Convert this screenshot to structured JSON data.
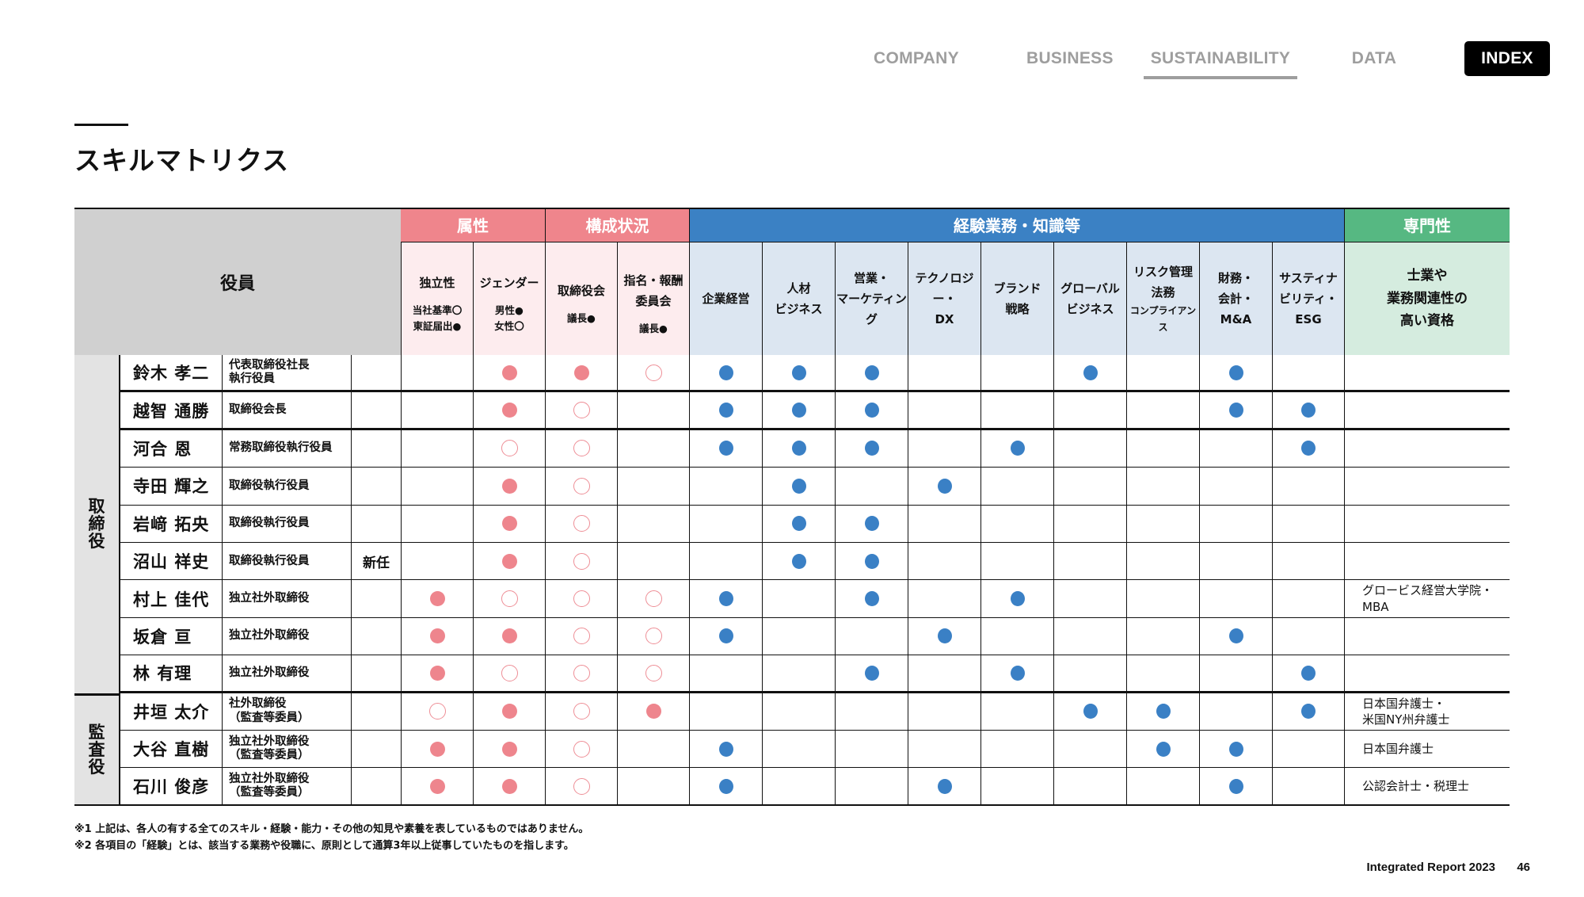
{
  "nav": {
    "items": [
      {
        "label": "COMPANY",
        "active": false
      },
      {
        "label": "BUSINESS",
        "active": false
      },
      {
        "label": "SUSTAINABILITY",
        "active": true
      },
      {
        "label": "DATA",
        "active": false
      },
      {
        "label": "INDEX",
        "active": false
      }
    ]
  },
  "page_title": "スキルマトリクス",
  "colors": {
    "attribute_pink": "#ef858c",
    "experience_blue": "#3b81c4",
    "expertise_green": "#56b882",
    "pink_cell": "#fdecee",
    "blue_cell": "#dce6f1",
    "green_cell": "#d5ecdf",
    "officer_gray": "#d0d0d0"
  },
  "table": {
    "officer_header": "役員",
    "groups": {
      "attributes": "属性",
      "composition": "構成状況",
      "experience": "経験業務・知識等",
      "expertise": "専門性"
    },
    "columns": [
      {
        "key": "independence",
        "label": "独立性",
        "legend": "当社基準〇\n東証届出●"
      },
      {
        "key": "gender",
        "label": "ジェンダー",
        "legend": "男性●\n女性〇"
      },
      {
        "key": "board",
        "label": "取締役会",
        "legend": "議長●"
      },
      {
        "key": "nomination",
        "label": "指名・報酬\n委員会",
        "legend": "議長●"
      },
      {
        "key": "management",
        "label": "企業経営"
      },
      {
        "key": "hr",
        "label": "人材\nビジネス"
      },
      {
        "key": "sales",
        "label": "営業・\nマーケティング"
      },
      {
        "key": "tech",
        "label": "テクノロジー・\nDX"
      },
      {
        "key": "brand",
        "label": "ブランド\n戦略"
      },
      {
        "key": "global",
        "label": "グローバル\nビジネス"
      },
      {
        "key": "risk",
        "label": "リスク管理\n法務",
        "sublabel": "コンプライアンス"
      },
      {
        "key": "finance",
        "label": "財務・\n会計・\nM&A"
      },
      {
        "key": "esg",
        "label": "サスティナ\nビリティ・\nESG"
      }
    ],
    "expertise_header": "士業や\n業務関連性の\n高い資格",
    "row_groups": [
      {
        "label": "取\n締\n役",
        "rows": 9
      },
      {
        "label": "監\n査\n役",
        "rows": 3
      }
    ],
    "rows": [
      {
        "name": "鈴木 孝二",
        "role": "代表取締役社長\n執行役員",
        "new": "",
        "marks": [
          "",
          "pf",
          "pf",
          "po",
          "b",
          "b",
          "b",
          "",
          "",
          "b",
          "",
          "b",
          ""
        ],
        "qualification": ""
      },
      {
        "name": "越智 通勝",
        "role": "取締役会長",
        "new": "",
        "marks": [
          "",
          "pf",
          "po",
          "",
          "b",
          "b",
          "b",
          "",
          "",
          "",
          "",
          "b",
          "b"
        ],
        "qualification": ""
      },
      {
        "name": "河合 恩",
        "role": "常務取締役執行役員",
        "new": "",
        "marks": [
          "",
          "po",
          "po",
          "",
          "b",
          "b",
          "b",
          "",
          "b",
          "",
          "",
          "",
          "b"
        ],
        "qualification": ""
      },
      {
        "name": "寺田 輝之",
        "role": "取締役執行役員",
        "new": "",
        "marks": [
          "",
          "pf",
          "po",
          "",
          "",
          "b",
          "",
          "b",
          "",
          "",
          "",
          "",
          ""
        ],
        "qualification": ""
      },
      {
        "name": "岩﨑 拓央",
        "role": "取締役執行役員",
        "new": "",
        "marks": [
          "",
          "pf",
          "po",
          "",
          "",
          "b",
          "b",
          "",
          "",
          "",
          "",
          "",
          ""
        ],
        "qualification": ""
      },
      {
        "name": "沼山 祥史",
        "role": "取締役執行役員",
        "new": "新任",
        "marks": [
          "",
          "pf",
          "po",
          "",
          "",
          "b",
          "b",
          "",
          "",
          "",
          "",
          "",
          ""
        ],
        "qualification": ""
      },
      {
        "name": "村上 佳代",
        "role": "独立社外取締役",
        "new": "",
        "marks": [
          "pf",
          "po",
          "po",
          "po",
          "b",
          "",
          "b",
          "",
          "b",
          "",
          "",
          "",
          ""
        ],
        "qualification": "グロービス経営大学院・\nMBA"
      },
      {
        "name": "坂倉 亘",
        "role": "独立社外取締役",
        "new": "",
        "marks": [
          "pf",
          "pf",
          "po",
          "po",
          "b",
          "",
          "",
          "b",
          "",
          "",
          "",
          "b",
          ""
        ],
        "qualification": ""
      },
      {
        "name": "林 有理",
        "role": "独立社外取締役",
        "new": "",
        "marks": [
          "pf",
          "po",
          "po",
          "po",
          "",
          "",
          "b",
          "",
          "b",
          "",
          "",
          "",
          "b"
        ],
        "qualification": ""
      },
      {
        "name": "井垣 太介",
        "role": "社外取締役\n（監査等委員）",
        "new": "",
        "marks": [
          "po",
          "pf",
          "po",
          "pf",
          "",
          "",
          "",
          "",
          "",
          "b",
          "b",
          "",
          "b"
        ],
        "qualification": "日本国弁護士・\n米国NY州弁護士"
      },
      {
        "name": "大谷 直樹",
        "role": "独立社外取締役\n（監査等委員）",
        "new": "",
        "marks": [
          "pf",
          "pf",
          "po",
          "",
          "b",
          "",
          "",
          "",
          "",
          "",
          "b",
          "b",
          ""
        ],
        "qualification": "日本国弁護士"
      },
      {
        "name": "石川 俊彦",
        "role": "独立社外取締役\n（監査等委員）",
        "new": "",
        "marks": [
          "pf",
          "pf",
          "po",
          "",
          "b",
          "",
          "",
          "b",
          "",
          "",
          "",
          "b",
          ""
        ],
        "qualification": "公認会計士・税理士"
      }
    ]
  },
  "notes": [
    "※1 上記は、各人の有する全てのスキル・経験・能力・その他の知見や素養を表しているものではありません。",
    "※2 各項目の「経験」とは、該当する業務や役職に、原則として通算3年以上従事していたものを指します。"
  ],
  "footer": {
    "report": "Integrated Report 2023",
    "page": "46"
  }
}
